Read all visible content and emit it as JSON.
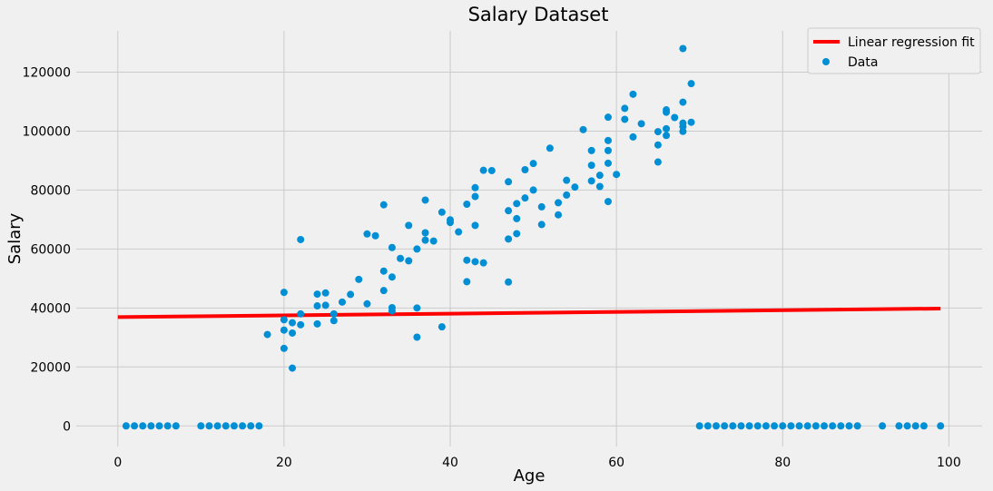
{
  "chart_data": {
    "type": "scatter",
    "title": "Salary Dataset",
    "xlabel": "Age",
    "ylabel": "Salary",
    "xlim": [
      -5,
      104
    ],
    "ylim": [
      -7000,
      134000
    ],
    "xticks": [
      0,
      20,
      40,
      60,
      80,
      100
    ],
    "yticks": [
      0,
      20000,
      40000,
      60000,
      80000,
      100000,
      120000
    ],
    "grid": true,
    "legend_position": "top-right",
    "legend": [
      {
        "label": "Linear regression fit",
        "kind": "line",
        "color": "#ff0000"
      },
      {
        "label": "Data",
        "kind": "marker",
        "color": "#008fd5"
      }
    ],
    "series": [
      {
        "name": "Data",
        "kind": "scatter",
        "color": "#008fd5",
        "points": [
          [
            1,
            0
          ],
          [
            2,
            0
          ],
          [
            3,
            0
          ],
          [
            4,
            0
          ],
          [
            5,
            0
          ],
          [
            6,
            0
          ],
          [
            7,
            0
          ],
          [
            10,
            0
          ],
          [
            11,
            0
          ],
          [
            12,
            0
          ],
          [
            13,
            0
          ],
          [
            14,
            0
          ],
          [
            15,
            0
          ],
          [
            16,
            0
          ],
          [
            17,
            0
          ],
          [
            70,
            0
          ],
          [
            71,
            0
          ],
          [
            72,
            0
          ],
          [
            73,
            0
          ],
          [
            74,
            0
          ],
          [
            75,
            0
          ],
          [
            76,
            0
          ],
          [
            77,
            0
          ],
          [
            78,
            0
          ],
          [
            79,
            0
          ],
          [
            80,
            0
          ],
          [
            81,
            0
          ],
          [
            82,
            0
          ],
          [
            83,
            0
          ],
          [
            84,
            0
          ],
          [
            85,
            0
          ],
          [
            86,
            0
          ],
          [
            87,
            0
          ],
          [
            88,
            0
          ],
          [
            89,
            0
          ],
          [
            92,
            0
          ],
          [
            94,
            0
          ],
          [
            95,
            0
          ],
          [
            96,
            0
          ],
          [
            97,
            0
          ],
          [
            99,
            0
          ],
          [
            18,
            31000
          ],
          [
            20,
            45300
          ],
          [
            20,
            36000
          ],
          [
            20,
            32500
          ],
          [
            20,
            26300
          ],
          [
            21,
            35000
          ],
          [
            21,
            31500
          ],
          [
            21,
            19600
          ],
          [
            22,
            63200
          ],
          [
            22,
            38000
          ],
          [
            22,
            34300
          ],
          [
            24,
            44700
          ],
          [
            24,
            40700
          ],
          [
            24,
            34600
          ],
          [
            25,
            45100
          ],
          [
            25,
            40900
          ],
          [
            26,
            38000
          ],
          [
            26,
            35700
          ],
          [
            27,
            42000
          ],
          [
            28,
            44600
          ],
          [
            29,
            49700
          ],
          [
            30,
            65100
          ],
          [
            30,
            41400
          ],
          [
            31,
            64500
          ],
          [
            32,
            75000
          ],
          [
            32,
            52500
          ],
          [
            32,
            45900
          ],
          [
            33,
            60500
          ],
          [
            33,
            50500
          ],
          [
            33,
            40100
          ],
          [
            33,
            39000
          ],
          [
            34,
            56800
          ],
          [
            35,
            68000
          ],
          [
            35,
            56000
          ],
          [
            36,
            60000
          ],
          [
            36,
            40000
          ],
          [
            36,
            30100
          ],
          [
            37,
            76600
          ],
          [
            37,
            65500
          ],
          [
            37,
            63000
          ],
          [
            38,
            62700
          ],
          [
            39,
            72500
          ],
          [
            39,
            33600
          ],
          [
            40,
            69900
          ],
          [
            40,
            69000
          ],
          [
            41,
            65800
          ],
          [
            42,
            75200
          ],
          [
            42,
            56200
          ],
          [
            42,
            48900
          ],
          [
            43,
            80800
          ],
          [
            43,
            77800
          ],
          [
            43,
            68000
          ],
          [
            43,
            55700
          ],
          [
            44,
            86700
          ],
          [
            44,
            55300
          ],
          [
            45,
            86600
          ],
          [
            47,
            82800
          ],
          [
            47,
            73000
          ],
          [
            47,
            63400
          ],
          [
            47,
            48800
          ],
          [
            48,
            75400
          ],
          [
            48,
            70300
          ],
          [
            48,
            65200
          ],
          [
            49,
            86900
          ],
          [
            49,
            77300
          ],
          [
            50,
            89000
          ],
          [
            50,
            80000
          ],
          [
            51,
            74300
          ],
          [
            51,
            68300
          ],
          [
            52,
            94200
          ],
          [
            53,
            75700
          ],
          [
            53,
            71600
          ],
          [
            54,
            83300
          ],
          [
            54,
            78300
          ],
          [
            55,
            81000
          ],
          [
            56,
            100500
          ],
          [
            57,
            93400
          ],
          [
            57,
            88400
          ],
          [
            57,
            83100
          ],
          [
            58,
            85000
          ],
          [
            58,
            81200
          ],
          [
            59,
            104700
          ],
          [
            59,
            96800
          ],
          [
            59,
            93400
          ],
          [
            59,
            89100
          ],
          [
            59,
            76100
          ],
          [
            60,
            85300
          ],
          [
            61,
            107700
          ],
          [
            61,
            104000
          ],
          [
            62,
            112500
          ],
          [
            62,
            98000
          ],
          [
            63,
            102500
          ],
          [
            65,
            99800
          ],
          [
            65,
            95300
          ],
          [
            65,
            89500
          ],
          [
            66,
            107200
          ],
          [
            66,
            106400
          ],
          [
            66,
            100800
          ],
          [
            66,
            98500
          ],
          [
            67,
            104600
          ],
          [
            68,
            128000
          ],
          [
            68,
            109800
          ],
          [
            68,
            102700
          ],
          [
            68,
            101500
          ],
          [
            68,
            99900
          ],
          [
            69,
            116100
          ],
          [
            69,
            103000
          ]
        ]
      },
      {
        "name": "Linear regression fit",
        "kind": "line",
        "color": "#ff0000",
        "points": [
          [
            0,
            36900
          ],
          [
            99,
            39800
          ]
        ]
      }
    ]
  }
}
